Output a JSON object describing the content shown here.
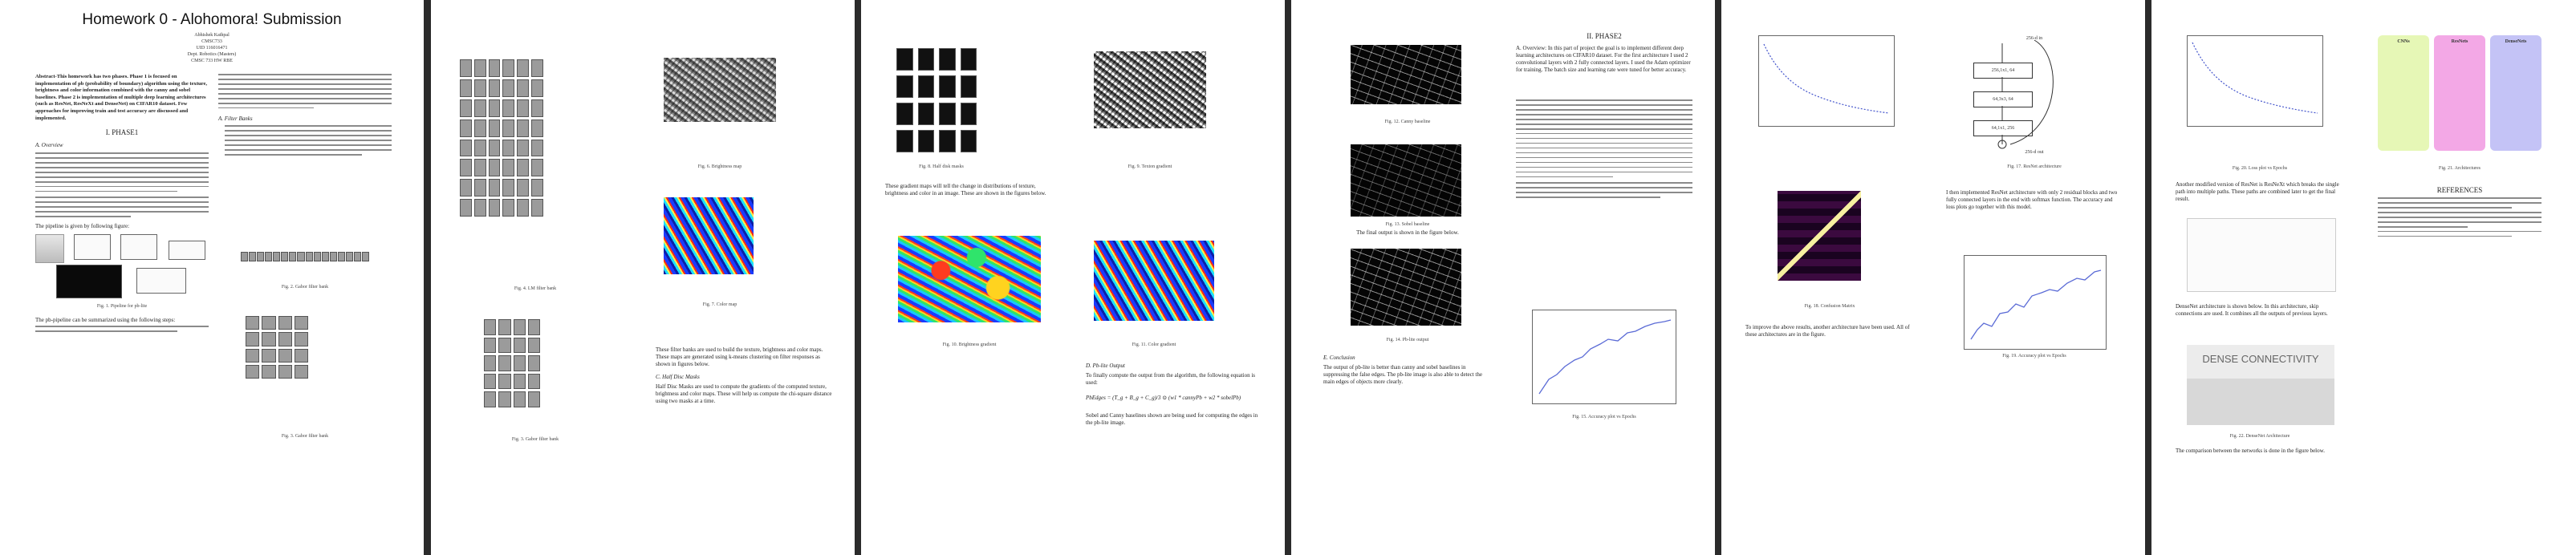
{
  "document": {
    "page_count": 6
  },
  "page1": {
    "title": "Homework 0 - Alohomora! Submission",
    "authors": [
      "Abhishek Kathpal",
      "CMSC733",
      "UID 116016471",
      "Dept. Robotics (Masters)",
      "CMSC 733 HW RBE"
    ],
    "abstract": "Abstract-This homework has two phases. Phase 1 is focused on implementation of pb (probability of boundary) algorithm using the texture, brightness and color information combined with the canny and sobel baselines. Phase 2 is implementation of multiple deep learning architectures (such as ResNet, ResNeXt and DenseNet) on CIFAR10 dataset. Few approaches for improving train and test accuracy are discussed and implemented.",
    "section": "I. PHASE1",
    "subsection": "A. Overview",
    "intro_line": "The pipeline is given by following figure:",
    "filter_heading": "A. Filter Banks",
    "fig1_caption": "Fig. 1. Pipeline for pb-lite",
    "pipeline_para": "The pb-pipeline can be summarized using the following steps:"
  },
  "page2": {
    "fig2_caption": "Fig. 2. DoG filter bank",
    "fig3_caption": "Fig. 3. Gabor filter bank",
    "fig4_caption": "Fig. 4. LM filter bank",
    "fig5_caption": "Fig. 5. Texton map",
    "fig6_caption": "Fig. 6. Brightness map",
    "fig7_caption": "Fig. 7. Color map",
    "para": "These filter banks are used to build the texture, brightness and color maps. These maps are generated using k-means clustering on filter responses as shown in figures below.",
    "subsection": "C. Half Disc Masks",
    "subpara": "Half Disc Masks are used to compute the gradients of the computed texture, brightness and color maps. These will help us compute the chi-square distance using two masks at a time."
  },
  "page3": {
    "fig8_caption": "Fig. 8. Half disk masks",
    "fig9_caption": "Fig. 9. Texton gradient",
    "fig10_caption": "Fig. 10. Brightness gradient",
    "fig11_caption": "Fig. 11. Color gradient",
    "para": "These gradient maps will tell the change in distributions of texture, brightness and color in an image. These are shown in the figures below.",
    "subsection": "D. Pb-lite Output",
    "subpara": "To finally compute the output from the algorithm, the following equation is used:",
    "equation": "PbEdges = (T_g + B_g + C_g)/3 ⊙ (w1 * cannyPb + w2 * sobelPb)",
    "after_eq": "Sobel and Canny baselines shown are being used for computing the edges in the pb-lite image."
  },
  "page4": {
    "fig12_caption": "Fig. 12. Canny baseline",
    "fig13_caption": "Fig. 13. Sobel baseline",
    "fig14_caption": "Fig. 14. Pb-lite output",
    "below_fig": "The final output is shown in the figure below.",
    "section": "II. PHASE2",
    "subsection": "A. Overview",
    "fig15_caption": "Fig. 15. Accuracy plot vs Epochs",
    "para_right": "A. Overview: In this part of project the goal is to implement different deep learning architectures on CIFAR10 dataset. For the first architecture I used 2 convolutional layers with 2 fully connected layers. I used the Adam optimizer for training. The batch size and learning rate were tuned for better accuracy.",
    "para_left": "The output of pb-lite is better than canny and sobel baselines in suppressing the false edges. The pb-lite image is also able to detect the main edges of objects more clearly."
  },
  "page5": {
    "fig16_caption": "Fig. 16. Loss plot vs epochs",
    "fig17_caption": "Fig. 17. ResNet architecture",
    "fig18_caption": "Fig. 18. Confusion Matrix",
    "fig19_caption": "Fig. 19. Accuracy plot vs Epochs",
    "arch_top": "256-d in",
    "arch_labels": [
      "256,1x1, 64",
      "64,3x3, 64",
      "64,1x1, 256"
    ],
    "arch_bottom": "256-d out",
    "para": "I then implemented ResNet architecture with only 2 residual blocks and two fully connected layers in the end with softmax function. The accuracy and loss plots go together with this model.",
    "para2": "To improve the above results, another architecture have been used. All of these architectures are in the figure."
  },
  "page6": {
    "fig20_caption": "Fig. 20. Loss plot vs Epochs",
    "fig21_caption": "Fig. 21. Architectures",
    "fig22_caption": "Fig. 22. DenseNet Architecture",
    "arch_boxes": [
      "CNNs",
      "ResNets",
      "DenseNets"
    ],
    "references_heading": "REFERENCES",
    "dense_title": "DENSE CONNECTIVITY",
    "para": "Another modified version of ResNet is ResNeXt which breaks the single path into multiple paths. These paths are combined later to get the final result.",
    "para2": "DenseNet architecture is shown below. In this architecture, skip connections are used. It combines all the outputs of previous layers.",
    "comparison": "The comparison between the networks is done in the figure below."
  }
}
